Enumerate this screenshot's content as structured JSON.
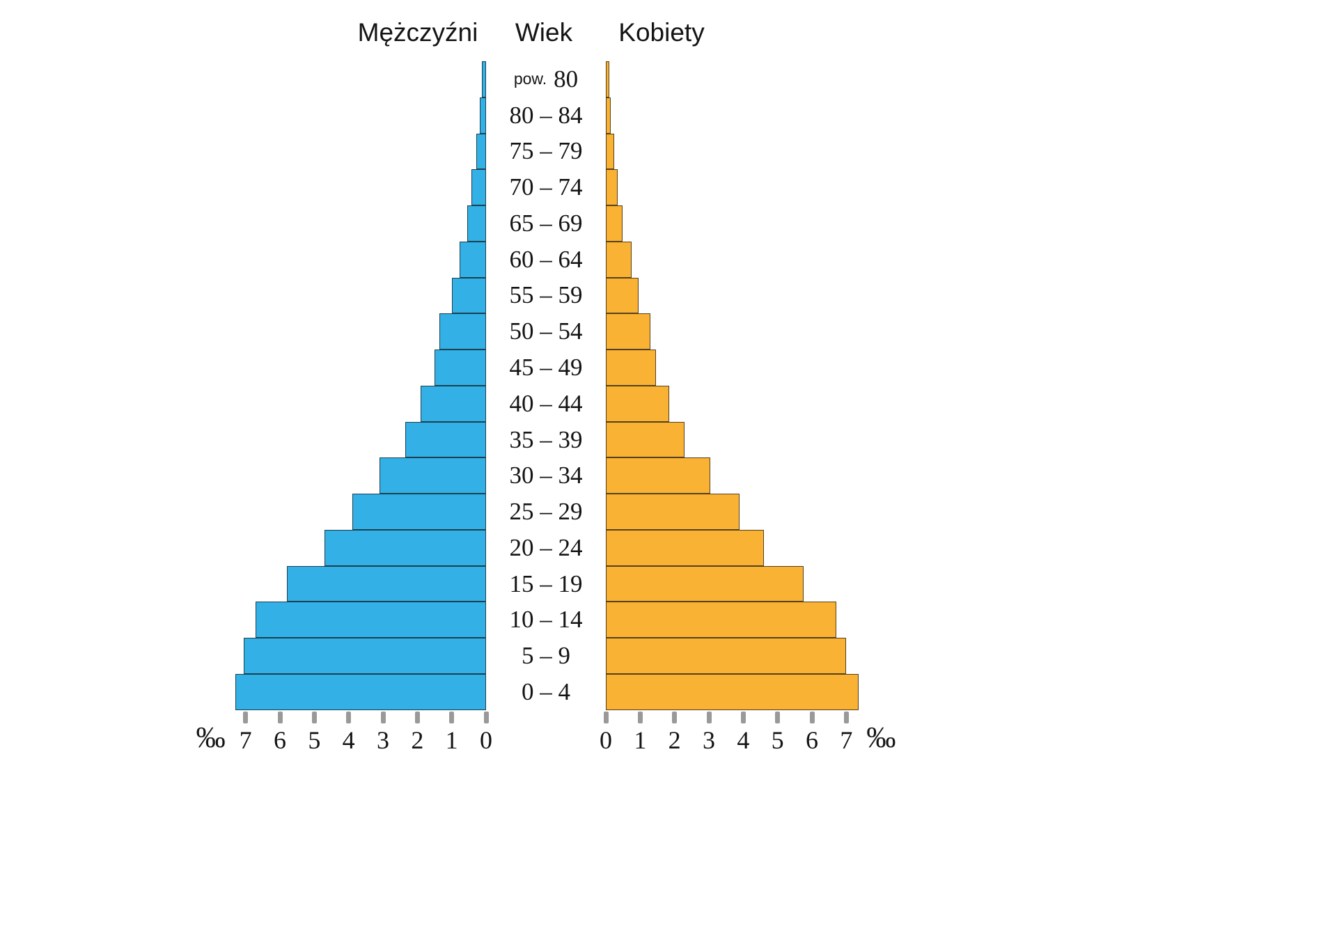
{
  "header": {
    "men": "Mężczyźni",
    "age": "Wiek",
    "women": "Kobiety"
  },
  "axis": {
    "permille": "‰",
    "ticks": [
      0,
      1,
      2,
      3,
      4,
      5,
      6,
      7
    ]
  },
  "colors": {
    "men_bar": "#33b1e6",
    "women_bar": "#f9b233",
    "bar_border": "#1c1c1c",
    "tick": "#999999",
    "text": "#141414"
  },
  "chart_data": {
    "type": "bar",
    "variant": "population-pyramid",
    "unit": "‰",
    "xlim": [
      0,
      7.5
    ],
    "x_ticks": [
      0,
      1,
      2,
      3,
      4,
      5,
      6,
      7
    ],
    "xlabel_left": "‰",
    "xlabel_right": "‰",
    "categories_top_to_bottom": [
      "pow. 80",
      "80 – 84",
      "75 – 79",
      "70 – 74",
      "65 – 69",
      "60 – 64",
      "55 – 59",
      "50 – 54",
      "45 – 49",
      "40 – 44",
      "35 – 39",
      "30 – 34",
      "25 – 29",
      "20 – 24",
      "15 – 19",
      "10 – 14",
      "5 – 9",
      "0 – 4"
    ],
    "series": [
      {
        "name": "Mężczyźni",
        "side": "left",
        "color": "#33b1e6",
        "values_top_to_bottom": [
          0.12,
          0.18,
          0.28,
          0.42,
          0.55,
          0.78,
          1.0,
          1.35,
          1.5,
          1.9,
          2.35,
          3.1,
          3.9,
          4.7,
          5.8,
          6.7,
          7.05,
          7.3
        ]
      },
      {
        "name": "Kobiety",
        "side": "right",
        "color": "#f9b233",
        "values_top_to_bottom": [
          0.1,
          0.15,
          0.25,
          0.35,
          0.48,
          0.75,
          0.95,
          1.3,
          1.45,
          1.85,
          2.3,
          3.05,
          3.9,
          4.6,
          5.75,
          6.7,
          7.0,
          7.35
        ]
      }
    ]
  }
}
